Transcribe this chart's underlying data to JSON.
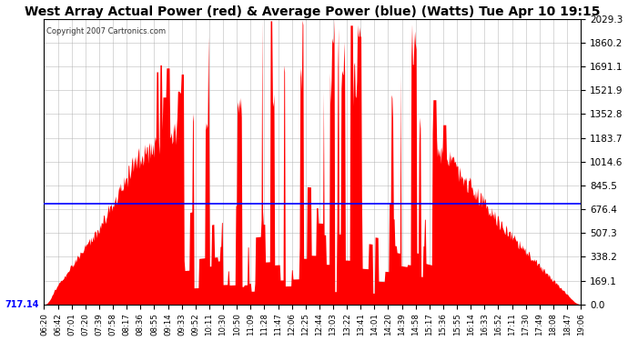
{
  "title": "West Array Actual Power (red) & Average Power (blue) (Watts) Tue Apr 10 19:15",
  "copyright": "Copyright 2007 Cartronics.com",
  "avg_power": 717.14,
  "y_max": 2029.3,
  "y_min": 0.0,
  "y_ticks": [
    0.0,
    169.1,
    338.2,
    507.3,
    676.4,
    845.5,
    1014.6,
    1183.7,
    1352.8,
    1521.9,
    1691.1,
    1860.2,
    2029.3
  ],
  "x_labels": [
    "06:20",
    "06:42",
    "07:01",
    "07:20",
    "07:39",
    "07:58",
    "08:17",
    "08:36",
    "08:55",
    "09:14",
    "09:33",
    "09:52",
    "10:11",
    "10:30",
    "10:50",
    "11:09",
    "11:28",
    "11:47",
    "12:06",
    "12:25",
    "12:44",
    "13:03",
    "13:22",
    "13:41",
    "14:01",
    "14:20",
    "14:39",
    "14:58",
    "15:17",
    "15:36",
    "15:55",
    "16:14",
    "16:33",
    "16:52",
    "17:11",
    "17:30",
    "17:49",
    "18:08",
    "18:47",
    "19:06"
  ],
  "background_color": "#ffffff",
  "fill_color": "#ff0000",
  "line_color": "#0000ff",
  "grid_color": "#aaaaaa",
  "title_fontsize": 10,
  "label_fontsize": 7.5,
  "figsize": [
    6.9,
    3.75
  ],
  "dpi": 100
}
